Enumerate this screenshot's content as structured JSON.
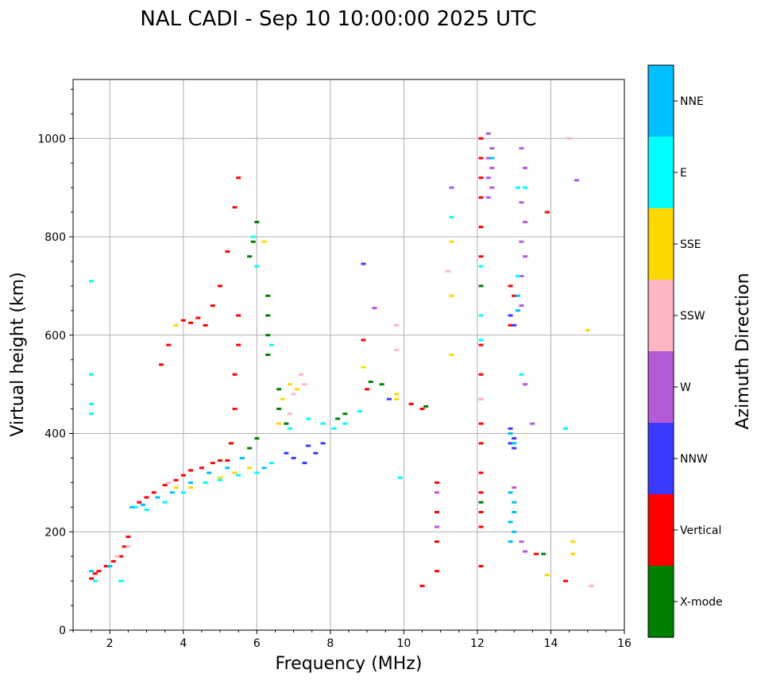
{
  "chart_data": {
    "type": "scatter",
    "title": "NAL CADI - Sep 10 10:00:00 2025 UTC",
    "xlabel": "Frequency (MHz)",
    "ylabel": "Virtual height (km)",
    "xlim": [
      1,
      16
    ],
    "ylim": [
      0,
      1120
    ],
    "xticks": [
      2,
      4,
      6,
      8,
      10,
      12,
      14,
      16
    ],
    "yticks": [
      0,
      200,
      400,
      600,
      800,
      1000
    ],
    "grid": true,
    "colorbar": {
      "label": "Azimuth Direction",
      "categories": [
        "X-mode",
        "Vertical",
        "NNW",
        "W",
        "SSW",
        "SSE",
        "E",
        "NNE"
      ],
      "colors": [
        "#008000",
        "#ff0000",
        "#3a3aff",
        "#b55ad6",
        "#ffb6c1",
        "#ffd700",
        "#00ffff",
        "#00bfff"
      ]
    },
    "series": [
      {
        "name": "Vertical",
        "points": [
          [
            1.5,
            105
          ],
          [
            1.6,
            115
          ],
          [
            1.7,
            120
          ],
          [
            1.9,
            130
          ],
          [
            2.1,
            140
          ],
          [
            2.3,
            150
          ],
          [
            2.4,
            170
          ],
          [
            2.5,
            190
          ],
          [
            2.8,
            260
          ],
          [
            3.0,
            270
          ],
          [
            3.2,
            280
          ],
          [
            3.5,
            295
          ],
          [
            3.8,
            305
          ],
          [
            4.0,
            315
          ],
          [
            4.2,
            325
          ],
          [
            4.5,
            330
          ],
          [
            4.8,
            340
          ],
          [
            5.0,
            345
          ],
          [
            5.2,
            345
          ],
          [
            4.0,
            630
          ],
          [
            4.2,
            625
          ],
          [
            4.4,
            635
          ],
          [
            4.6,
            620
          ],
          [
            3.6,
            580
          ],
          [
            3.4,
            540
          ],
          [
            4.8,
            660
          ],
          [
            5.0,
            700
          ],
          [
            5.2,
            770
          ],
          [
            5.4,
            860
          ],
          [
            5.5,
            920
          ],
          [
            5.3,
            380
          ],
          [
            5.4,
            450
          ],
          [
            5.4,
            520
          ],
          [
            5.5,
            580
          ],
          [
            5.5,
            640
          ],
          [
            10.2,
            460
          ],
          [
            10.5,
            450
          ],
          [
            10.9,
            300
          ],
          [
            10.9,
            240
          ],
          [
            10.9,
            180
          ],
          [
            10.9,
            120
          ],
          [
            10.5,
            90
          ],
          [
            12.1,
            1000
          ],
          [
            12.1,
            960
          ],
          [
            12.1,
            920
          ],
          [
            12.1,
            880
          ],
          [
            12.1,
            820
          ],
          [
            12.1,
            760
          ],
          [
            12.1,
            580
          ],
          [
            12.1,
            520
          ],
          [
            12.1,
            470
          ],
          [
            12.1,
            420
          ],
          [
            12.1,
            380
          ],
          [
            12.1,
            320
          ],
          [
            12.1,
            280
          ],
          [
            12.1,
            240
          ],
          [
            12.1,
            210
          ],
          [
            12.1,
            130
          ],
          [
            12.9,
            700
          ],
          [
            13.0,
            680
          ],
          [
            12.9,
            620
          ],
          [
            13.6,
            155
          ],
          [
            14.4,
            100
          ],
          [
            13.9,
            850
          ],
          [
            8.9,
            590
          ],
          [
            9.0,
            490
          ]
        ]
      },
      {
        "name": "X-mode",
        "points": [
          [
            6.3,
            680
          ],
          [
            6.3,
            640
          ],
          [
            6.3,
            600
          ],
          [
            6.3,
            560
          ],
          [
            6.0,
            830
          ],
          [
            5.9,
            790
          ],
          [
            5.8,
            760
          ],
          [
            6.6,
            490
          ],
          [
            6.6,
            450
          ],
          [
            6.8,
            420
          ],
          [
            5.6,
            350
          ],
          [
            5.8,
            370
          ],
          [
            6.0,
            390
          ],
          [
            8.4,
            440
          ],
          [
            8.2,
            430
          ],
          [
            9.4,
            500
          ],
          [
            9.1,
            505
          ],
          [
            10.6,
            455
          ],
          [
            12.1,
            700
          ],
          [
            13.8,
            155
          ],
          [
            12.1,
            260
          ]
        ]
      },
      {
        "name": "NNW",
        "points": [
          [
            7.0,
            350
          ],
          [
            7.3,
            340
          ],
          [
            7.6,
            360
          ],
          [
            7.8,
            380
          ],
          [
            7.4,
            375
          ],
          [
            6.8,
            360
          ],
          [
            12.9,
            410
          ],
          [
            13.0,
            390
          ],
          [
            12.9,
            380
          ],
          [
            13.0,
            370
          ],
          [
            12.9,
            640
          ],
          [
            13.0,
            620
          ],
          [
            9.6,
            470
          ],
          [
            8.9,
            745
          ]
        ]
      },
      {
        "name": "W",
        "points": [
          [
            12.3,
            1010
          ],
          [
            12.4,
            980
          ],
          [
            12.3,
            960
          ],
          [
            12.4,
            940
          ],
          [
            12.3,
            920
          ],
          [
            12.4,
            900
          ],
          [
            12.3,
            880
          ],
          [
            13.2,
            980
          ],
          [
            13.3,
            940
          ],
          [
            13.2,
            870
          ],
          [
            13.3,
            830
          ],
          [
            13.2,
            790
          ],
          [
            13.3,
            760
          ],
          [
            13.2,
            720
          ],
          [
            13.2,
            660
          ],
          [
            13.3,
            500
          ],
          [
            13.5,
            420
          ],
          [
            13.0,
            290
          ],
          [
            13.2,
            180
          ],
          [
            13.3,
            160
          ],
          [
            11.3,
            900
          ],
          [
            9.2,
            655
          ],
          [
            10.9,
            280
          ],
          [
            10.9,
            210
          ],
          [
            14.7,
            915
          ]
        ]
      },
      {
        "name": "SSW",
        "points": [
          [
            2.2,
            150
          ],
          [
            2.5,
            170
          ],
          [
            3.6,
            300
          ],
          [
            7.2,
            520
          ],
          [
            7.3,
            500
          ],
          [
            7.0,
            480
          ],
          [
            6.9,
            440
          ],
          [
            9.8,
            620
          ],
          [
            9.8,
            570
          ],
          [
            11.2,
            730
          ],
          [
            12.1,
            470
          ],
          [
            15.1,
            90
          ],
          [
            14.5,
            1000
          ]
        ]
      },
      {
        "name": "SSE",
        "points": [
          [
            3.8,
            290
          ],
          [
            4.2,
            290
          ],
          [
            4.6,
            300
          ],
          [
            5.0,
            310
          ],
          [
            5.4,
            320
          ],
          [
            5.8,
            330
          ],
          [
            6.6,
            420
          ],
          [
            6.7,
            470
          ],
          [
            6.9,
            500
          ],
          [
            7.1,
            490
          ],
          [
            6.2,
            790
          ],
          [
            3.8,
            620
          ],
          [
            8.9,
            535
          ],
          [
            9.8,
            480
          ],
          [
            9.8,
            470
          ],
          [
            11.3,
            790
          ],
          [
            11.3,
            680
          ],
          [
            11.3,
            560
          ],
          [
            15.0,
            610
          ],
          [
            14.6,
            180
          ],
          [
            14.6,
            155
          ],
          [
            13.9,
            112
          ]
        ]
      },
      {
        "name": "E",
        "points": [
          [
            1.5,
            710
          ],
          [
            1.5,
            520
          ],
          [
            1.5,
            460
          ],
          [
            1.5,
            440
          ],
          [
            1.6,
            100
          ],
          [
            2.3,
            100
          ],
          [
            2.7,
            250
          ],
          [
            3.0,
            245
          ],
          [
            3.5,
            260
          ],
          [
            4.0,
            280
          ],
          [
            4.6,
            300
          ],
          [
            5.0,
            305
          ],
          [
            5.5,
            315
          ],
          [
            6.0,
            320
          ],
          [
            6.4,
            340
          ],
          [
            6.9,
            410
          ],
          [
            7.4,
            430
          ],
          [
            7.8,
            420
          ],
          [
            8.1,
            410
          ],
          [
            8.4,
            420
          ],
          [
            8.8,
            445
          ],
          [
            6.0,
            740
          ],
          [
            5.9,
            800
          ],
          [
            6.4,
            580
          ],
          [
            9.9,
            310
          ],
          [
            11.3,
            840
          ],
          [
            12.1,
            740
          ],
          [
            12.1,
            640
          ],
          [
            12.1,
            590
          ],
          [
            13.1,
            720
          ],
          [
            13.2,
            520
          ],
          [
            13.3,
            900
          ],
          [
            14.4,
            410
          ],
          [
            13.1,
            900
          ]
        ]
      },
      {
        "name": "NNE",
        "points": [
          [
            1.5,
            120
          ],
          [
            2.0,
            130
          ],
          [
            2.6,
            250
          ],
          [
            2.9,
            255
          ],
          [
            3.3,
            270
          ],
          [
            3.7,
            280
          ],
          [
            4.2,
            300
          ],
          [
            4.7,
            320
          ],
          [
            5.2,
            330
          ],
          [
            5.6,
            350
          ],
          [
            6.2,
            330
          ],
          [
            12.4,
            960
          ],
          [
            12.9,
            400
          ],
          [
            13.0,
            380
          ],
          [
            12.9,
            280
          ],
          [
            13.0,
            260
          ],
          [
            13.0,
            240
          ],
          [
            12.9,
            220
          ],
          [
            13.0,
            200
          ],
          [
            12.9,
            180
          ],
          [
            13.1,
            680
          ],
          [
            13.1,
            650
          ]
        ]
      }
    ]
  }
}
